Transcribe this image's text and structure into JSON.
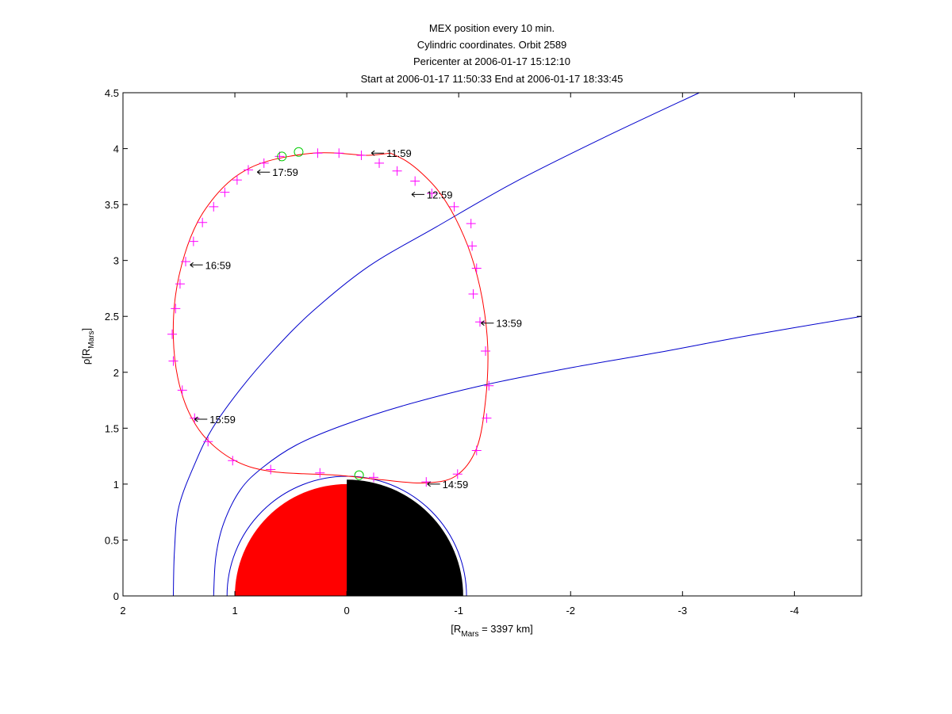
{
  "chart_data": {
    "type": "line",
    "title_lines": [
      "MEX position every 10 min.",
      "Cylindric coordinates. Orbit 2589",
      "Pericenter at 2006-01-17 15:12:10",
      "Start at 2006-01-17 11:50:33 End at 2006-01-17 18:33:45"
    ],
    "xlabel": {
      "main": "[R",
      "sub": "Mars",
      "tail": " = 3397 km]"
    },
    "ylabel": {
      "main": "ρ[R",
      "sub": "Mars",
      "tail": "]"
    },
    "xlim": [
      2,
      -4.6
    ],
    "ylim": [
      0,
      4.5
    ],
    "xticks": [
      2,
      1,
      0,
      -1,
      -2,
      -3,
      -4
    ],
    "yticks": [
      0,
      0.5,
      1,
      1.5,
      2,
      2.5,
      3,
      3.5,
      4,
      4.5
    ],
    "colors": {
      "orbit": "#ff0000",
      "markers": "#ff00ff",
      "circles": "#00cc00",
      "boundaries": "#0000cc",
      "mars_day": "#ff0000",
      "mars_night": "#000000"
    },
    "orbit_points": [
      [
        -0.39,
        3.96
      ],
      [
        -0.53,
        3.89
      ],
      [
        -0.67,
        3.78
      ],
      [
        -0.82,
        3.62
      ],
      [
        -0.97,
        3.38
      ],
      [
        -1.11,
        3.05
      ],
      [
        -1.21,
        2.66
      ],
      [
        -1.26,
        2.22
      ],
      [
        -1.24,
        1.75
      ],
      [
        -1.16,
        1.32
      ],
      [
        -0.97,
        1.07
      ],
      [
        -0.68,
        1.01
      ],
      [
        -0.3,
        1.04
      ],
      [
        0.09,
        1.08
      ],
      [
        0.65,
        1.11
      ],
      [
        0.98,
        1.2
      ],
      [
        1.25,
        1.4
      ],
      [
        1.41,
        1.64
      ],
      [
        1.51,
        1.95
      ],
      [
        1.55,
        2.31
      ],
      [
        1.53,
        2.69
      ],
      [
        1.45,
        3.05
      ],
      [
        1.33,
        3.35
      ],
      [
        1.18,
        3.57
      ],
      [
        1.02,
        3.73
      ],
      [
        0.86,
        3.83
      ],
      [
        0.7,
        3.89
      ],
      [
        0.52,
        3.93
      ],
      [
        0.3,
        3.96
      ],
      [
        0.08,
        3.96
      ],
      [
        -0.18,
        3.94
      ],
      [
        -0.39,
        3.96
      ]
    ],
    "markers": [
      [
        0.26,
        3.96
      ],
      [
        0.07,
        3.96
      ],
      [
        -0.13,
        3.94
      ],
      [
        -0.29,
        3.87
      ],
      [
        -0.45,
        3.8
      ],
      [
        -0.61,
        3.71
      ],
      [
        -0.76,
        3.6
      ],
      [
        -0.96,
        3.48
      ],
      [
        -1.11,
        3.33
      ],
      [
        -1.12,
        3.13
      ],
      [
        -1.16,
        2.93
      ],
      [
        -1.13,
        2.7
      ],
      [
        -1.19,
        2.45
      ],
      [
        -1.24,
        2.19
      ],
      [
        -1.27,
        1.88
      ],
      [
        -1.25,
        1.59
      ],
      [
        -1.16,
        1.3
      ],
      [
        -0.99,
        1.09
      ],
      [
        -0.71,
        1.02
      ],
      [
        -0.24,
        1.06
      ],
      [
        0.24,
        1.1
      ],
      [
        0.68,
        1.13
      ],
      [
        1.02,
        1.21
      ],
      [
        1.24,
        1.38
      ],
      [
        1.36,
        1.59
      ],
      [
        1.47,
        1.84
      ],
      [
        1.55,
        2.1
      ],
      [
        1.56,
        2.34
      ],
      [
        1.53,
        2.57
      ],
      [
        1.49,
        2.79
      ],
      [
        1.44,
        2.99
      ],
      [
        1.37,
        3.17
      ],
      [
        1.29,
        3.34
      ],
      [
        1.19,
        3.48
      ],
      [
        1.09,
        3.61
      ],
      [
        0.98,
        3.72
      ],
      [
        0.88,
        3.81
      ],
      [
        0.74,
        3.87
      ],
      [
        0.6,
        3.93
      ]
    ],
    "circle_markers": [
      [
        0.58,
        3.93
      ],
      [
        0.43,
        3.97
      ],
      [
        -0.11,
        1.08
      ]
    ],
    "time_labels": [
      {
        "x": -0.22,
        "y": 3.96,
        "label": "11:59"
      },
      {
        "x": -0.58,
        "y": 3.59,
        "label": "12:59"
      },
      {
        "x": -1.2,
        "y": 2.44,
        "label": "13:59"
      },
      {
        "x": -0.72,
        "y": 1.0,
        "label": "14:59"
      },
      {
        "x": 1.36,
        "y": 1.58,
        "label": "15:59"
      },
      {
        "x": 1.4,
        "y": 2.96,
        "label": "16:59"
      },
      {
        "x": 0.8,
        "y": 3.79,
        "label": "17:59"
      }
    ],
    "bow_shock": [
      [
        1.55,
        0
      ],
      [
        1.54,
        0.4
      ],
      [
        1.5,
        0.8
      ],
      [
        1.35,
        1.2
      ],
      [
        1.2,
        1.5
      ],
      [
        0.95,
        1.85
      ],
      [
        0.65,
        2.2
      ],
      [
        0.3,
        2.55
      ],
      [
        -0.2,
        2.95
      ],
      [
        -0.8,
        3.3
      ],
      [
        -1.5,
        3.7
      ],
      [
        -2.3,
        4.1
      ],
      [
        -3.15,
        4.5
      ]
    ],
    "mpb": [
      [
        1.19,
        0
      ],
      [
        1.17,
        0.35
      ],
      [
        1.1,
        0.65
      ],
      [
        0.95,
        0.95
      ],
      [
        0.75,
        1.15
      ],
      [
        0.45,
        1.35
      ],
      [
        0.05,
        1.52
      ],
      [
        -0.5,
        1.7
      ],
      [
        -1.2,
        1.88
      ],
      [
        -2.0,
        2.04
      ],
      [
        -2.8,
        2.18
      ],
      [
        -3.6,
        2.33
      ],
      [
        -4.6,
        2.5
      ]
    ],
    "mars": {
      "radius": 1.0,
      "shadow_radius": 1.04,
      "outer_ring": 1.07
    }
  }
}
